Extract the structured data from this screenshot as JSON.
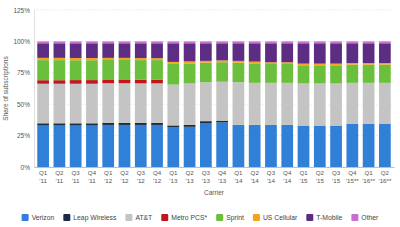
{
  "chart_data": {
    "type": "bar",
    "stacked": true,
    "grid": true,
    "legend": "bottom",
    "x_label": "Carrier",
    "y_label": "Share of subscriptions",
    "categories": [
      "Q1 '11",
      "Q2 '11",
      "Q3 '11",
      "Q4 '11",
      "Q1 '12",
      "Q2 '12",
      "Q3 '12",
      "Q4 '12",
      "Q1 '13",
      "Q2 '13",
      "Q3 '13",
      "Q4 '13",
      "Q1 '14",
      "Q2 '14",
      "Q3 '14",
      "Q4 '14",
      "Q1 '15",
      "Q2 '15",
      "Q3 '15",
      "Q4 '15**",
      "Q1 '16**",
      "Q2 '16**"
    ],
    "ylim": [
      0,
      125
    ],
    "yticks": [
      {
        "value": 0,
        "label": "0%"
      },
      {
        "value": 25,
        "label": "25%"
      },
      {
        "value": 50,
        "label": "50%"
      },
      {
        "value": 75,
        "label": "75%"
      },
      {
        "value": 100,
        "label": "100%"
      },
      {
        "value": 125,
        "label": "125%"
      }
    ],
    "series": [
      {
        "name": "Verizon",
        "color": "#2f80d6",
        "values": [
          33,
          33,
          33,
          33,
          33.5,
          33.5,
          33.5,
          33.5,
          31.5,
          32,
          35,
          35.5,
          33.5,
          33.5,
          33.5,
          33.5,
          33,
          33,
          33,
          34.5,
          34.5,
          34.5
        ]
      },
      {
        "name": "Leap Wireless",
        "color": "#1c2b42",
        "values": [
          1.8,
          1.8,
          1.8,
          1.8,
          1.7,
          1.7,
          1.6,
          1.6,
          1.6,
          1.5,
          1.5,
          1.4,
          0,
          0,
          0,
          0,
          0,
          0,
          0,
          0,
          0,
          0
        ]
      },
      {
        "name": "AT&T",
        "color": "#c4c4c4",
        "values": [
          31.5,
          31.5,
          31.5,
          31.5,
          31.5,
          31.5,
          31.5,
          31.5,
          32.5,
          33,
          31,
          31,
          34,
          33.5,
          33.5,
          33.5,
          33.5,
          33.5,
          33.5,
          32.5,
          32.5,
          32.5
        ]
      },
      {
        "name": "Metro PCS*",
        "color": "#c0171b",
        "values": [
          2.8,
          2.8,
          2.9,
          2.9,
          3,
          3,
          3,
          3,
          0,
          0,
          0,
          0,
          0,
          0,
          0,
          0,
          0,
          0,
          0,
          0,
          0,
          0
        ]
      },
      {
        "name": "Sprint",
        "color": "#6cbf3c",
        "values": [
          16,
          16,
          15.8,
          15.8,
          15.5,
          15.5,
          15.5,
          15.5,
          16.5,
          16,
          15.5,
          15.5,
          15.5,
          15.5,
          15,
          15,
          14.5,
          14.5,
          14.5,
          14.5,
          14.5,
          14.5
        ]
      },
      {
        "name": "US Cellular",
        "color": "#f5a31c",
        "values": [
          1.8,
          1.8,
          1.8,
          1.8,
          1.7,
          1.7,
          1.7,
          1.6,
          1.6,
          1.6,
          1.5,
          1.5,
          1.5,
          1.4,
          1.4,
          1.4,
          1.3,
          1.3,
          1.3,
          1.3,
          1.3,
          1.3
        ]
      },
      {
        "name": "T-Mobile",
        "color": "#5c2d83",
        "values": [
          11.6,
          11.6,
          11.7,
          11.7,
          11.6,
          11.6,
          11.7,
          11.8,
          14.8,
          14.4,
          14,
          13.6,
          14,
          14.6,
          15.1,
          15.1,
          16.2,
          16.2,
          16.2,
          15.7,
          15.7,
          15.7
        ]
      },
      {
        "name": "Other",
        "color": "#c96dcf",
        "values": [
          1.5,
          1.5,
          1.5,
          1.5,
          1.5,
          1.5,
          1.5,
          1.5,
          1.5,
          1.5,
          1.5,
          1.5,
          1.5,
          1.5,
          1.5,
          1.5,
          1.5,
          1.5,
          1.5,
          1.5,
          1.5,
          1.5
        ]
      }
    ]
  }
}
